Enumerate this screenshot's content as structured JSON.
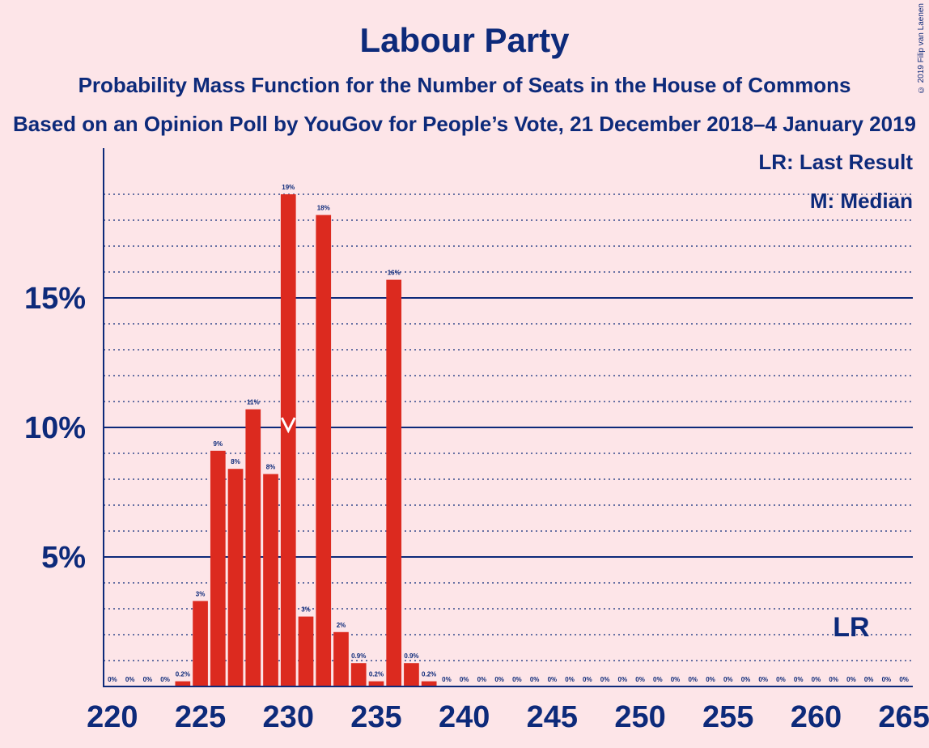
{
  "title": "Labour Party",
  "subtitle1": "Probability Mass Function for the Number of Seats in the House of Commons",
  "subtitle2": "Based on an Opinion Poll by YouGov for People’s Vote, 21 December 2018–4 January 2019",
  "copyright": "© 2019 Filip van Laenen",
  "legend": {
    "lr": "LR: Last Result",
    "m": "M: Median"
  },
  "colors": {
    "background": "#fde5e8",
    "bar": "#dc2a1f",
    "text": "#0d2a7a",
    "median_marker": "#ffffff"
  },
  "chart_data": {
    "type": "bar",
    "xlim": [
      220,
      265
    ],
    "ylim": [
      0,
      20
    ],
    "x_ticks": [
      "220",
      "225",
      "230",
      "235",
      "240",
      "245",
      "250",
      "255",
      "260",
      "265"
    ],
    "y_ticks": [
      {
        "value": 5,
        "label": "5%"
      },
      {
        "value": 10,
        "label": "10%"
      },
      {
        "value": 15,
        "label": "15%"
      }
    ],
    "minor_gridlines": [
      1,
      2,
      3,
      4,
      6,
      7,
      8,
      9,
      11,
      12,
      13,
      14,
      16,
      17,
      18,
      19
    ],
    "bars": [
      {
        "seats": 220,
        "value": 0,
        "label": "0%"
      },
      {
        "seats": 221,
        "value": 0,
        "label": "0%"
      },
      {
        "seats": 222,
        "value": 0,
        "label": "0%"
      },
      {
        "seats": 223,
        "value": 0,
        "label": "0%"
      },
      {
        "seats": 224,
        "value": 0.2,
        "label": "0.2%"
      },
      {
        "seats": 225,
        "value": 3.3,
        "label": "3%"
      },
      {
        "seats": 226,
        "value": 9.1,
        "label": "9%"
      },
      {
        "seats": 227,
        "value": 8.4,
        "label": "8%"
      },
      {
        "seats": 228,
        "value": 10.7,
        "label": "11%"
      },
      {
        "seats": 229,
        "value": 8.2,
        "label": "8%"
      },
      {
        "seats": 230,
        "value": 19.0,
        "label": "19%"
      },
      {
        "seats": 231,
        "value": 2.7,
        "label": "3%"
      },
      {
        "seats": 232,
        "value": 18.2,
        "label": "18%"
      },
      {
        "seats": 233,
        "value": 2.1,
        "label": "2%"
      },
      {
        "seats": 234,
        "value": 0.9,
        "label": "0.9%"
      },
      {
        "seats": 235,
        "value": 0.2,
        "label": "0.2%"
      },
      {
        "seats": 236,
        "value": 15.7,
        "label": "16%"
      },
      {
        "seats": 237,
        "value": 0.9,
        "label": "0.9%"
      },
      {
        "seats": 238,
        "value": 0.2,
        "label": "0.2%"
      },
      {
        "seats": 239,
        "value": 0,
        "label": "0%"
      },
      {
        "seats": 240,
        "value": 0,
        "label": "0%"
      },
      {
        "seats": 241,
        "value": 0,
        "label": "0%"
      },
      {
        "seats": 242,
        "value": 0,
        "label": "0%"
      },
      {
        "seats": 243,
        "value": 0,
        "label": "0%"
      },
      {
        "seats": 244,
        "value": 0,
        "label": "0%"
      },
      {
        "seats": 245,
        "value": 0,
        "label": "0%"
      },
      {
        "seats": 246,
        "value": 0,
        "label": "0%"
      },
      {
        "seats": 247,
        "value": 0,
        "label": "0%"
      },
      {
        "seats": 248,
        "value": 0,
        "label": "0%"
      },
      {
        "seats": 249,
        "value": 0,
        "label": "0%"
      },
      {
        "seats": 250,
        "value": 0,
        "label": "0%"
      },
      {
        "seats": 251,
        "value": 0,
        "label": "0%"
      },
      {
        "seats": 252,
        "value": 0,
        "label": "0%"
      },
      {
        "seats": 253,
        "value": 0,
        "label": "0%"
      },
      {
        "seats": 254,
        "value": 0,
        "label": "0%"
      },
      {
        "seats": 255,
        "value": 0,
        "label": "0%"
      },
      {
        "seats": 256,
        "value": 0,
        "label": "0%"
      },
      {
        "seats": 257,
        "value": 0,
        "label": "0%"
      },
      {
        "seats": 258,
        "value": 0,
        "label": "0%"
      },
      {
        "seats": 259,
        "value": 0,
        "label": "0%"
      },
      {
        "seats": 260,
        "value": 0,
        "label": "0%"
      },
      {
        "seats": 261,
        "value": 0,
        "label": "0%"
      },
      {
        "seats": 262,
        "value": 0,
        "label": "0%"
      },
      {
        "seats": 263,
        "value": 0,
        "label": "0%"
      },
      {
        "seats": 264,
        "value": 0,
        "label": "0%"
      },
      {
        "seats": 265,
        "value": 0,
        "label": "0%"
      }
    ],
    "median_seats": 230,
    "last_result_seats": 262,
    "last_result_label": "LR"
  }
}
